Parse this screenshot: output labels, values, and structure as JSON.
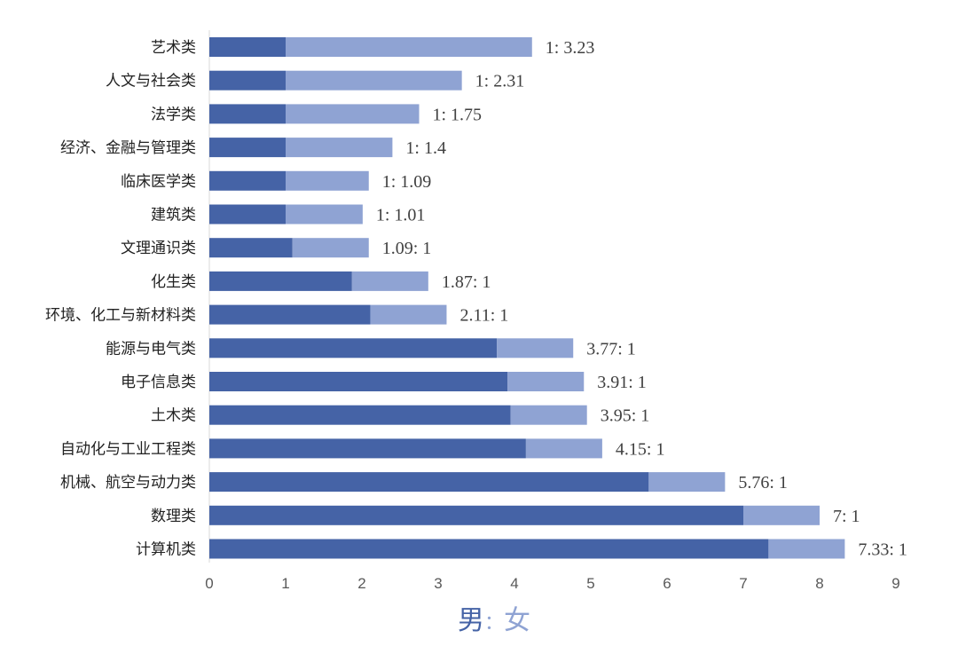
{
  "chart_data": {
    "type": "bar",
    "orientation": "horizontal",
    "stacked": true,
    "categories": [
      "艺术类",
      "人文与社会类",
      "法学类",
      "经济、金融与管理类",
      "临床医学类",
      "建筑类",
      "文理通识类",
      "化生类",
      "环境、化工与新材料类",
      "能源与电气类",
      "电子信息类",
      "土木类",
      "自动化与工业工程类",
      "机械、航空与动力类",
      "数理类",
      "计算机类"
    ],
    "series": [
      {
        "name": "男",
        "color": "#4563a6",
        "values": [
          1,
          1,
          1,
          1,
          1,
          1,
          1.09,
          1.87,
          2.11,
          3.77,
          3.91,
          3.95,
          4.15,
          5.76,
          7,
          7.33
        ]
      },
      {
        "name": "女",
        "color": "#8fa3d3",
        "values": [
          3.23,
          2.31,
          1.75,
          1.4,
          1.09,
          1.01,
          1,
          1,
          1,
          1,
          1,
          1,
          1,
          1,
          1,
          1
        ]
      }
    ],
    "data_labels": [
      "1: 3.23",
      "1: 2.31",
      "1: 1.75",
      "1: 1.4",
      "1: 1.09",
      "1: 1.01",
      "1.09: 1",
      "1.87: 1",
      "2.11: 1",
      "3.77: 1",
      "3.91: 1",
      "3.95: 1",
      "4.15: 1",
      "5.76: 1",
      "7: 1",
      "7.33: 1"
    ],
    "x_ticks": [
      "0",
      "1",
      "2",
      "3",
      "4",
      "5",
      "6",
      "7",
      "8",
      "9"
    ],
    "xlim": [
      0,
      9
    ],
    "grid": false,
    "legend": {
      "position": "bottom",
      "male": "男",
      "separator": "：",
      "female": "女"
    }
  }
}
